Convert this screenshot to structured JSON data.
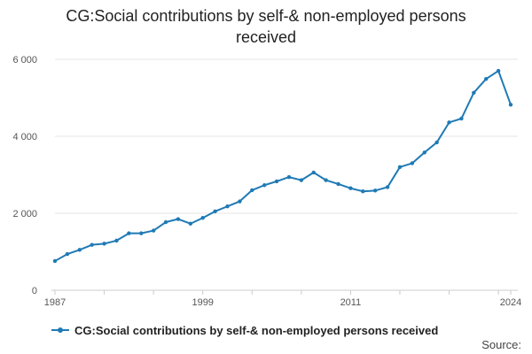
{
  "colors": {
    "series": "#1f7ab5",
    "grid": "#e6e6e6",
    "axis": "#cccccc"
  },
  "source_label": "Source:",
  "chart_data": {
    "type": "line",
    "title": "CG:Social contributions by self-& non-employed persons received",
    "xlabel": "",
    "ylabel": "",
    "x": [
      1987,
      1988,
      1989,
      1990,
      1991,
      1992,
      1993,
      1994,
      1995,
      1996,
      1997,
      1998,
      1999,
      2000,
      2001,
      2002,
      2003,
      2004,
      2005,
      2006,
      2007,
      2008,
      2009,
      2010,
      2011,
      2012,
      2013,
      2014,
      2015,
      2016,
      2017,
      2018,
      2019,
      2020,
      2021,
      2022,
      2023,
      2024
    ],
    "series": [
      {
        "name": "CG:Social contributions by self-& non-employed persons received",
        "values": [
          760,
          940,
          1050,
          1180,
          1210,
          1290,
          1480,
          1480,
          1550,
          1770,
          1850,
          1730,
          1880,
          2050,
          2180,
          2310,
          2600,
          2730,
          2830,
          2940,
          2860,
          3060,
          2860,
          2760,
          2650,
          2570,
          2590,
          2680,
          3200,
          3300,
          3580,
          3840,
          4360,
          4460,
          5130,
          5490,
          5700,
          4820
        ]
      }
    ],
    "xlim": [
      1987,
      2024
    ],
    "ylim": [
      0,
      6000
    ],
    "x_ticks": [
      1987,
      1999,
      2011,
      2024
    ],
    "x_tick_labels": [
      "1987",
      "1999",
      "2011",
      "2024"
    ],
    "y_ticks": [
      0,
      2000,
      4000,
      6000
    ],
    "y_tick_labels": [
      "0",
      "2 000",
      "4 000",
      "6 000"
    ],
    "grid": "horizontal",
    "legend_position": "bottom"
  }
}
